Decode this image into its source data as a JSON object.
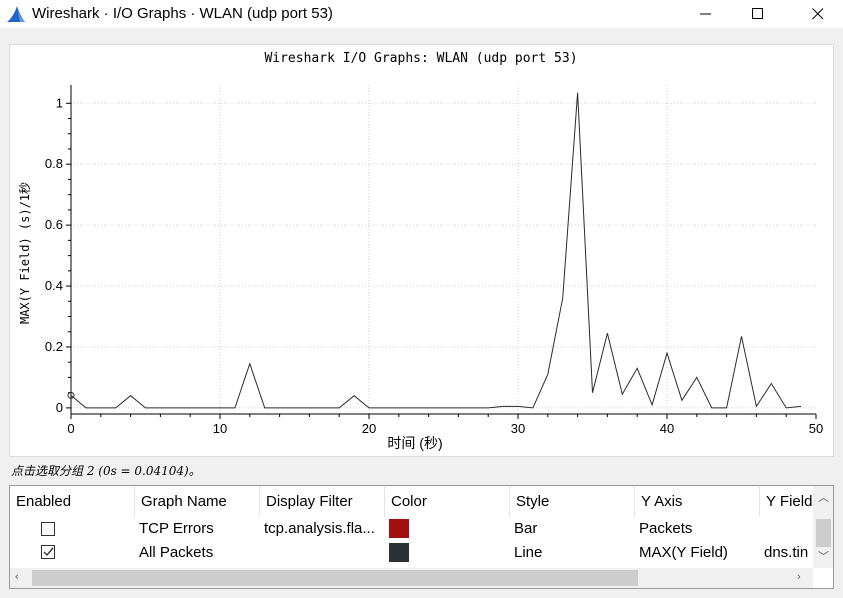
{
  "window": {
    "title": "Wireshark · I/O Graphs · WLAN (udp port 53)"
  },
  "plot": {
    "title": "Wireshark I/O Graphs: WLAN (udp port 53)",
    "xlabel": "时间 (秒)",
    "ylabel": "MAX(Y Field) (s)/1秒"
  },
  "chart_data": {
    "type": "line",
    "title": "Wireshark I/O Graphs: WLAN (udp port 53)",
    "xlabel": "时间 (秒)",
    "ylabel": "MAX(Y Field) (s)/1秒",
    "xlim": [
      0,
      50
    ],
    "ylim": [
      -0.02,
      1.06
    ],
    "x_ticks": [
      "0",
      "10",
      "20",
      "30",
      "40",
      "50"
    ],
    "y_ticks": [
      "0",
      "0.2",
      "0.4",
      "0.6",
      "0.8",
      "1"
    ],
    "grid": true,
    "series": [
      {
        "name": "All Packets",
        "color": "#2b2b2b",
        "x": [
          0,
          1,
          2,
          3,
          4,
          5,
          6,
          7,
          8,
          9,
          10,
          11,
          12,
          13,
          14,
          15,
          16,
          17,
          18,
          19,
          20,
          21,
          22,
          23,
          24,
          25,
          26,
          27,
          28,
          29,
          30,
          31,
          32,
          33,
          34,
          35,
          36,
          37,
          38,
          39,
          40,
          41,
          42,
          43,
          44,
          45,
          46,
          47,
          48,
          49
        ],
        "y": [
          0.04104,
          0,
          0,
          0,
          0.04,
          0,
          0,
          0,
          0,
          0,
          0,
          0,
          0.145,
          0,
          0,
          0,
          0,
          0,
          0,
          0.04,
          0,
          0,
          0,
          0,
          0,
          0,
          0,
          0,
          0,
          0.005,
          0.005,
          0,
          0.11,
          0.36,
          1.035,
          0.05,
          0.245,
          0.045,
          0.13,
          0.01,
          0.18,
          0.025,
          0.1,
          0,
          0,
          0.235,
          0.005,
          0.08,
          0,
          0.005
        ]
      }
    ],
    "selected_point": {
      "x": 0,
      "y": 0.04104
    }
  },
  "status": {
    "text": "点击选取分组 2 (0s = 0.04104)。"
  },
  "table": {
    "columns": [
      "Enabled",
      "Graph Name",
      "Display Filter",
      "Color",
      "Style",
      "Y Axis",
      "Y Field"
    ],
    "rows": [
      {
        "enabled": false,
        "name": "TCP Errors",
        "filter": "tcp.analysis.fla...",
        "color": "#a30f0f",
        "style": "Bar",
        "y_axis": "Packets",
        "y_field": ""
      },
      {
        "enabled": true,
        "name": "All Packets",
        "filter": "",
        "color": "#2b3033",
        "style": "Line",
        "y_axis": "MAX(Y Field)",
        "y_field": "dns.tin"
      }
    ]
  }
}
